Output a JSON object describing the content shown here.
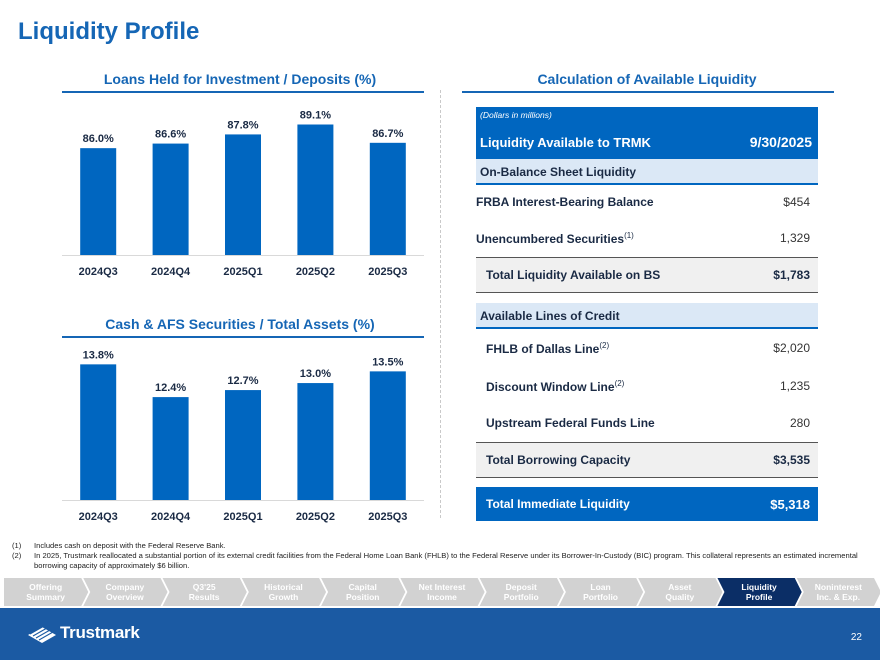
{
  "page_title": "Liquidity Profile",
  "colors": {
    "brand_blue": "#0066c0",
    "title_blue": "#1566b5",
    "nav_inactive": "#d2d2d2",
    "nav_active": "#0b2e66",
    "footer_blue": "#1b5aa3"
  },
  "chart1": {
    "title": "Loans Held for Investment / Deposits (%)"
  },
  "chart2": {
    "title": "Cash & AFS Securities / Total Assets (%)"
  },
  "chart_data": [
    {
      "type": "bar",
      "title": "Loans Held for Investment / Deposits (%)",
      "categories": [
        "2024Q3",
        "2024Q4",
        "2025Q1",
        "2025Q2",
        "2025Q3"
      ],
      "values": [
        86.0,
        86.6,
        87.8,
        89.1,
        86.7
      ],
      "labels": [
        "86.0%",
        "86.6%",
        "87.8%",
        "89.1%",
        "86.7%"
      ],
      "ylim": [
        72,
        91
      ],
      "grid": false,
      "color": "#0066c0"
    },
    {
      "type": "bar",
      "title": "Cash & AFS Securities / Total Assets (%)",
      "categories": [
        "2024Q3",
        "2024Q4",
        "2025Q1",
        "2025Q2",
        "2025Q3"
      ],
      "values": [
        13.8,
        12.4,
        12.7,
        13.0,
        13.5
      ],
      "labels": [
        "13.8%",
        "12.4%",
        "12.7%",
        "13.0%",
        "13.5%"
      ],
      "ylim": [
        8,
        14.2
      ],
      "grid": false,
      "color": "#0066c0"
    }
  ],
  "table": {
    "section_title": "Calculation of Available Liquidity",
    "note": "(Dollars in millions)",
    "header_label": "Liquidity Available to TRMK",
    "header_date": "9/30/2025",
    "bs_section": "On-Balance Sheet Liquidity",
    "frba_label": "FRBA Interest-Bearing Balance",
    "frba_value": "$454",
    "unenc_label": "Unencumbered Securities",
    "unenc_sup": "(1)",
    "unenc_value": "1,329",
    "total_bs_label": "Total Liquidity Available on BS",
    "total_bs_value": "$1,783",
    "credit_section": "Available Lines of Credit",
    "fhlb_label": "FHLB of Dallas Line",
    "fhlb_sup": "(2)",
    "fhlb_value": "$2,020",
    "discount_label": "Discount Window Line",
    "discount_sup": "(2)",
    "discount_value": "1,235",
    "upstream_label": "Upstream Federal Funds Line",
    "upstream_value": "280",
    "total_borrow_label": "Total Borrowing Capacity",
    "total_borrow_value": "$3,535",
    "total_imm_label": "Total Immediate Liquidity",
    "total_imm_value": "$5,318"
  },
  "footnotes": [
    {
      "num": "(1)",
      "text": "Includes cash on deposit with the Federal Reserve Bank."
    },
    {
      "num": "(2)",
      "text": "In 2025, Trustmark reallocated a substantial portion of its external credit facilities from the Federal Home Loan Bank (FHLB) to the Federal Reserve under its Borrower-In-Custody (BIC) program. This collateral represents an estimated incremental borrowing capacity of approximately $6 billion."
    }
  ],
  "nav": [
    {
      "line1": "Offering",
      "line2": "Summary",
      "active": false
    },
    {
      "line1": "Company",
      "line2": "Overview",
      "active": false
    },
    {
      "line1": "Q3'25",
      "line2": "Results",
      "active": false
    },
    {
      "line1": "Historical",
      "line2": "Growth",
      "active": false
    },
    {
      "line1": "Capital",
      "line2": "Position",
      "active": false
    },
    {
      "line1": "Net Interest",
      "line2": "Income",
      "active": false
    },
    {
      "line1": "Deposit",
      "line2": "Portfolio",
      "active": false
    },
    {
      "line1": "Loan",
      "line2": "Portfolio",
      "active": false
    },
    {
      "line1": "Asset",
      "line2": "Quality",
      "active": false
    },
    {
      "line1": "Liquidity",
      "line2": "Profile",
      "active": true
    },
    {
      "line1": "Noninterest",
      "line2": "Inc. & Exp.",
      "active": false
    }
  ],
  "footer": {
    "logo_text": "Trustmark",
    "page_number": "22"
  }
}
